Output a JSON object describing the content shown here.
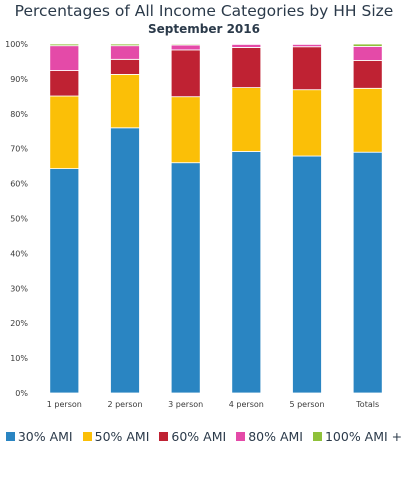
{
  "chart_data": {
    "type": "bar",
    "stacked": true,
    "title": "Percentages of All Income Categories by HH Size",
    "subtitle": "September 2016",
    "categories": [
      "1 person",
      "2 person",
      "3 person",
      "4 person",
      "5 person",
      "Totals"
    ],
    "series": [
      {
        "name": "30% AMI",
        "color": "#2a85c2",
        "values": [
          64.3,
          76.0,
          66.0,
          69.2,
          67.9,
          69.0
        ]
      },
      {
        "name": "50% AMI",
        "color": "#fbbf07",
        "values": [
          20.8,
          15.3,
          18.9,
          18.3,
          19.0,
          18.3
        ]
      },
      {
        "name": "60% AMI",
        "color": "#bf2233",
        "values": [
          7.3,
          4.3,
          13.4,
          11.5,
          12.3,
          8.0
        ]
      },
      {
        "name": "80% AMI",
        "color": "#e44aa8",
        "values": [
          7.1,
          3.9,
          1.4,
          0.9,
          0.7,
          4.0
        ]
      },
      {
        "name": "100% AMI +",
        "color": "#8fc13a",
        "values": [
          0.5,
          0.5,
          0.3,
          0.1,
          0.1,
          0.7
        ]
      }
    ],
    "yticks": [
      "0%",
      "10%",
      "20%",
      "30%",
      "40%",
      "50%",
      "60%",
      "70%",
      "80%",
      "90%",
      "100%"
    ],
    "ylim": [
      0,
      100
    ],
    "grid": false,
    "legend": "bottom"
  }
}
